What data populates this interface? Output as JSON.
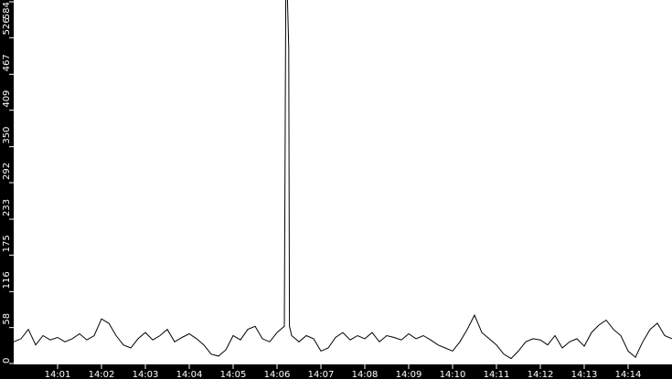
{
  "chart_data": {
    "type": "line",
    "title": "",
    "xlabel": "",
    "ylabel": "",
    "xlim": [
      "14:00:00",
      "14:15:00"
    ],
    "ylim": [
      0,
      584
    ],
    "y_ticks": [
      "0",
      "58",
      "116",
      "175",
      "233",
      "292",
      "350",
      "409",
      "467",
      "526",
      "584"
    ],
    "x_ticks": [
      "14:01",
      "14:02",
      "14:03",
      "14:04",
      "14:05",
      "14:06",
      "14:07",
      "14:08",
      "14:09",
      "14:10",
      "14:11",
      "14:12",
      "14:13",
      "14:14"
    ],
    "grid": false,
    "colors": {
      "background": "#ffffff",
      "axis_background": "#000000",
      "axis_text": "#ffffff",
      "line": "#000000"
    },
    "series": [
      {
        "points": [
          [
            "14:00:00",
            35
          ],
          [
            "14:00:10",
            40
          ],
          [
            "14:00:20",
            55
          ],
          [
            "14:00:30",
            30
          ],
          [
            "14:00:40",
            45
          ],
          [
            "14:00:50",
            38
          ],
          [
            "14:01:00",
            42
          ],
          [
            "14:01:10",
            35
          ],
          [
            "14:01:20",
            40
          ],
          [
            "14:01:30",
            48
          ],
          [
            "14:01:40",
            38
          ],
          [
            "14:01:50",
            45
          ],
          [
            "14:02:00",
            72
          ],
          [
            "14:02:10",
            65
          ],
          [
            "14:02:20",
            45
          ],
          [
            "14:02:30",
            30
          ],
          [
            "14:02:40",
            25
          ],
          [
            "14:02:50",
            40
          ],
          [
            "14:03:00",
            50
          ],
          [
            "14:03:10",
            38
          ],
          [
            "14:03:20",
            45
          ],
          [
            "14:03:30",
            55
          ],
          [
            "14:03:40",
            35
          ],
          [
            "14:03:50",
            42
          ],
          [
            "14:04:00",
            48
          ],
          [
            "14:04:10",
            40
          ],
          [
            "14:04:20",
            30
          ],
          [
            "14:04:30",
            15
          ],
          [
            "14:04:40",
            12
          ],
          [
            "14:04:50",
            22
          ],
          [
            "14:05:00",
            45
          ],
          [
            "14:05:10",
            38
          ],
          [
            "14:05:20",
            55
          ],
          [
            "14:05:30",
            60
          ],
          [
            "14:05:40",
            40
          ],
          [
            "14:05:50",
            35
          ],
          [
            "14:06:00",
            50
          ],
          [
            "14:06:10",
            60
          ],
          [
            "14:06:12",
            600
          ],
          [
            "14:06:14",
            600
          ],
          [
            "14:06:16",
            510
          ],
          [
            "14:06:17",
            60
          ],
          [
            "14:06:20",
            45
          ],
          [
            "14:06:30",
            35
          ],
          [
            "14:06:40",
            45
          ],
          [
            "14:06:50",
            40
          ],
          [
            "14:07:00",
            20
          ],
          [
            "14:07:10",
            25
          ],
          [
            "14:07:20",
            42
          ],
          [
            "14:07:30",
            50
          ],
          [
            "14:07:40",
            38
          ],
          [
            "14:07:50",
            45
          ],
          [
            "14:08:00",
            40
          ],
          [
            "14:08:10",
            50
          ],
          [
            "14:08:20",
            35
          ],
          [
            "14:08:30",
            45
          ],
          [
            "14:08:40",
            42
          ],
          [
            "14:08:50",
            38
          ],
          [
            "14:09:00",
            48
          ],
          [
            "14:09:10",
            40
          ],
          [
            "14:09:20",
            45
          ],
          [
            "14:09:30",
            38
          ],
          [
            "14:09:40",
            30
          ],
          [
            "14:09:50",
            25
          ],
          [
            "14:10:00",
            20
          ],
          [
            "14:10:10",
            35
          ],
          [
            "14:10:20",
            55
          ],
          [
            "14:10:30",
            78
          ],
          [
            "14:10:40",
            50
          ],
          [
            "14:10:50",
            40
          ],
          [
            "14:11:00",
            30
          ],
          [
            "14:11:10",
            15
          ],
          [
            "14:11:20",
            8
          ],
          [
            "14:11:30",
            20
          ],
          [
            "14:11:40",
            35
          ],
          [
            "14:11:50",
            40
          ],
          [
            "14:12:00",
            38
          ],
          [
            "14:12:10",
            30
          ],
          [
            "14:12:20",
            45
          ],
          [
            "14:12:30",
            25
          ],
          [
            "14:12:40",
            35
          ],
          [
            "14:12:50",
            40
          ],
          [
            "14:13:00",
            28
          ],
          [
            "14:13:10",
            50
          ],
          [
            "14:13:20",
            62
          ],
          [
            "14:13:30",
            70
          ],
          [
            "14:13:40",
            55
          ],
          [
            "14:13:50",
            45
          ],
          [
            "14:14:00",
            20
          ],
          [
            "14:14:10",
            10
          ],
          [
            "14:14:20",
            35
          ],
          [
            "14:14:30",
            55
          ],
          [
            "14:14:40",
            65
          ],
          [
            "14:14:50",
            45
          ],
          [
            "14:15:00",
            40
          ]
        ]
      }
    ]
  }
}
